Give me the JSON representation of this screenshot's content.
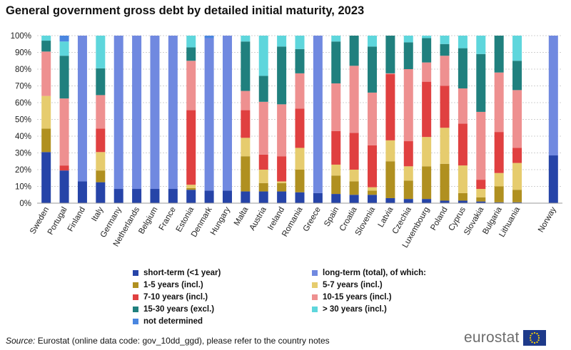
{
  "title": "General government gross debt by detailed initial maturity, 2023",
  "source_label": "Source:",
  "source_text": " Eurostat (online data code: gov_10dd_ggd), please refer to the country notes",
  "logo_text": "eurostat",
  "colors": {
    "short": "#2644a8",
    "long_total": "#7089e0",
    "y1_5": "#b09020",
    "y5_7": "#e6cc6e",
    "y7_10": "#e04040",
    "y10_15": "#ee9090",
    "y15_30": "#20807e",
    "y30p": "#5ed6dc",
    "nd": "#4a86e0"
  },
  "legend": [
    {
      "key": "short",
      "label": "short-term (<1 year)"
    },
    {
      "key": "long_total",
      "label": "long-term (total), of which:"
    },
    {
      "key": "y1_5",
      "label": "1-5 years (incl.)"
    },
    {
      "key": "y5_7",
      "label": "5-7 years (incl.)"
    },
    {
      "key": "y7_10",
      "label": "7-10 years (incl.)"
    },
    {
      "key": "y10_15",
      "label": "10-15 years (incl.)"
    },
    {
      "key": "y15_30",
      "label": "15-30 years (excl.)"
    },
    {
      "key": "y30p",
      "label": "> 30 years (incl.)"
    },
    {
      "key": "nd",
      "label": "not determined"
    }
  ],
  "chart_data": {
    "type": "bar",
    "stacked": true,
    "title": "General government gross debt by detailed initial maturity, 2023",
    "ylim": [
      0,
      100
    ],
    "yticks": [
      "0%",
      "10%",
      "20%",
      "30%",
      "40%",
      "50%",
      "60%",
      "70%",
      "80%",
      "90%",
      "100%"
    ],
    "series_order": [
      "short",
      "long_total",
      "y1_5",
      "y5_7",
      "y7_10",
      "y10_15",
      "y15_30",
      "y30p",
      "nd"
    ],
    "countries": [
      {
        "name": "Sweden",
        "short": 30.5,
        "y1_5": 14,
        "y5_7": 19.5,
        "y7_10": 0,
        "y10_15": 26.5,
        "y15_30": 6.5,
        "y30p": 3
      },
      {
        "name": "Portugal",
        "short": 19.5,
        "y1_5": 0,
        "y5_7": 0,
        "y7_10": 3,
        "y10_15": 40,
        "y15_30": 25.5,
        "y30p": 8.5,
        "nd": 3.5
      },
      {
        "name": "Finland",
        "short": 13,
        "long_total": 87
      },
      {
        "name": "Italy",
        "short": 12.5,
        "y1_5": 7,
        "y5_7": 11,
        "y7_10": 14,
        "y10_15": 20,
        "y15_30": 16,
        "y30p": 19.5
      },
      {
        "name": "Germany",
        "short": 8.5,
        "long_total": 91.5
      },
      {
        "name": "Netherlands",
        "short": 8.5,
        "long_total": 91.5
      },
      {
        "name": "Belgium",
        "short": 8.5,
        "long_total": 91.5
      },
      {
        "name": "France",
        "short": 8.5,
        "long_total": 91.5
      },
      {
        "name": "Estonia",
        "short": 8,
        "y1_5": 1,
        "y5_7": 2,
        "y7_10": 44.5,
        "y10_15": 29.5,
        "y15_30": 8,
        "y30p": 7
      },
      {
        "name": "Denmark",
        "short": 7.5,
        "long_total": 91,
        "nd": 1.5
      },
      {
        "name": "Hungary",
        "short": 7.5,
        "long_total": 92.5
      },
      {
        "name": "Malta",
        "short": 7,
        "y1_5": 21,
        "y5_7": 11,
        "y7_10": 16.5,
        "y10_15": 11.5,
        "y15_30": 29.5,
        "y30p": 3.5
      },
      {
        "name": "Austria",
        "short": 7,
        "y1_5": 5,
        "y5_7": 8,
        "y7_10": 9,
        "y10_15": 31.5,
        "y15_30": 15.5,
        "y30p": 24
      },
      {
        "name": "Ireland",
        "short": 7,
        "y1_5": 5,
        "y5_7": 1,
        "y7_10": 15,
        "y10_15": 31,
        "y15_30": 34.5,
        "y30p": 6.5
      },
      {
        "name": "Romania",
        "short": 6.5,
        "y1_5": 13.5,
        "y5_7": 13,
        "y7_10": 23.5,
        "y10_15": 21,
        "y15_30": 14.5,
        "y30p": 8
      },
      {
        "name": "Greece",
        "short": 6,
        "long_total": 94
      },
      {
        "name": "Spain",
        "short": 5.5,
        "y1_5": 11,
        "y5_7": 6.5,
        "y7_10": 20,
        "y10_15": 28.5,
        "y15_30": 25,
        "y30p": 3.5
      },
      {
        "name": "Croatia",
        "short": 5,
        "y1_5": 8,
        "y5_7": 7,
        "y7_10": 22,
        "y10_15": 40,
        "y15_30": 18,
        "y30p": 0
      },
      {
        "name": "Slovenia",
        "short": 5,
        "y1_5": 2.5,
        "y5_7": 2,
        "y7_10": 25,
        "y10_15": 31.5,
        "y15_30": 27.5,
        "y30p": 6.5
      },
      {
        "name": "Latvia",
        "short": 3,
        "y1_5": 22,
        "y5_7": 12.5,
        "y7_10": 39.5,
        "y10_15": 0.5,
        "y15_30": 22.5,
        "y30p": 0
      },
      {
        "name": "Czechia",
        "short": 2.5,
        "y1_5": 11,
        "y5_7": 8.5,
        "y7_10": 15,
        "y10_15": 43,
        "y15_30": 16,
        "y30p": 4
      },
      {
        "name": "Luxembourg",
        "short": 2.5,
        "y1_5": 19.5,
        "y5_7": 17.5,
        "y7_10": 33,
        "y10_15": 11.5,
        "y15_30": 14.5,
        "y30p": 1.5
      },
      {
        "name": "Poland",
        "short": 1.5,
        "y1_5": 22,
        "y5_7": 21.5,
        "y7_10": 25,
        "y10_15": 18,
        "y15_30": 7,
        "y30p": 5
      },
      {
        "name": "Cyprus",
        "short": 1.5,
        "y1_5": 4.5,
        "y5_7": 16.5,
        "y7_10": 25,
        "y10_15": 21,
        "y15_30": 24,
        "y30p": 7.5
      },
      {
        "name": "Slovakia",
        "short": 1,
        "y1_5": 2.5,
        "y5_7": 5,
        "y7_10": 5.5,
        "y10_15": 40.5,
        "y15_30": 34.5,
        "y30p": 11
      },
      {
        "name": "Bulgaria",
        "short": 0.5,
        "y1_5": 9.5,
        "y5_7": 8,
        "y7_10": 24.5,
        "y10_15": 35.5,
        "y15_30": 22,
        "y30p": 0
      },
      {
        "name": "Lithuania",
        "short": 0.5,
        "y1_5": 7.5,
        "y5_7": 16,
        "y7_10": 9,
        "y10_15": 34.5,
        "y15_30": 17.5,
        "y30p": 15
      },
      {
        "name": "Norway",
        "short": 28.5,
        "long_total": 71.5
      }
    ]
  }
}
